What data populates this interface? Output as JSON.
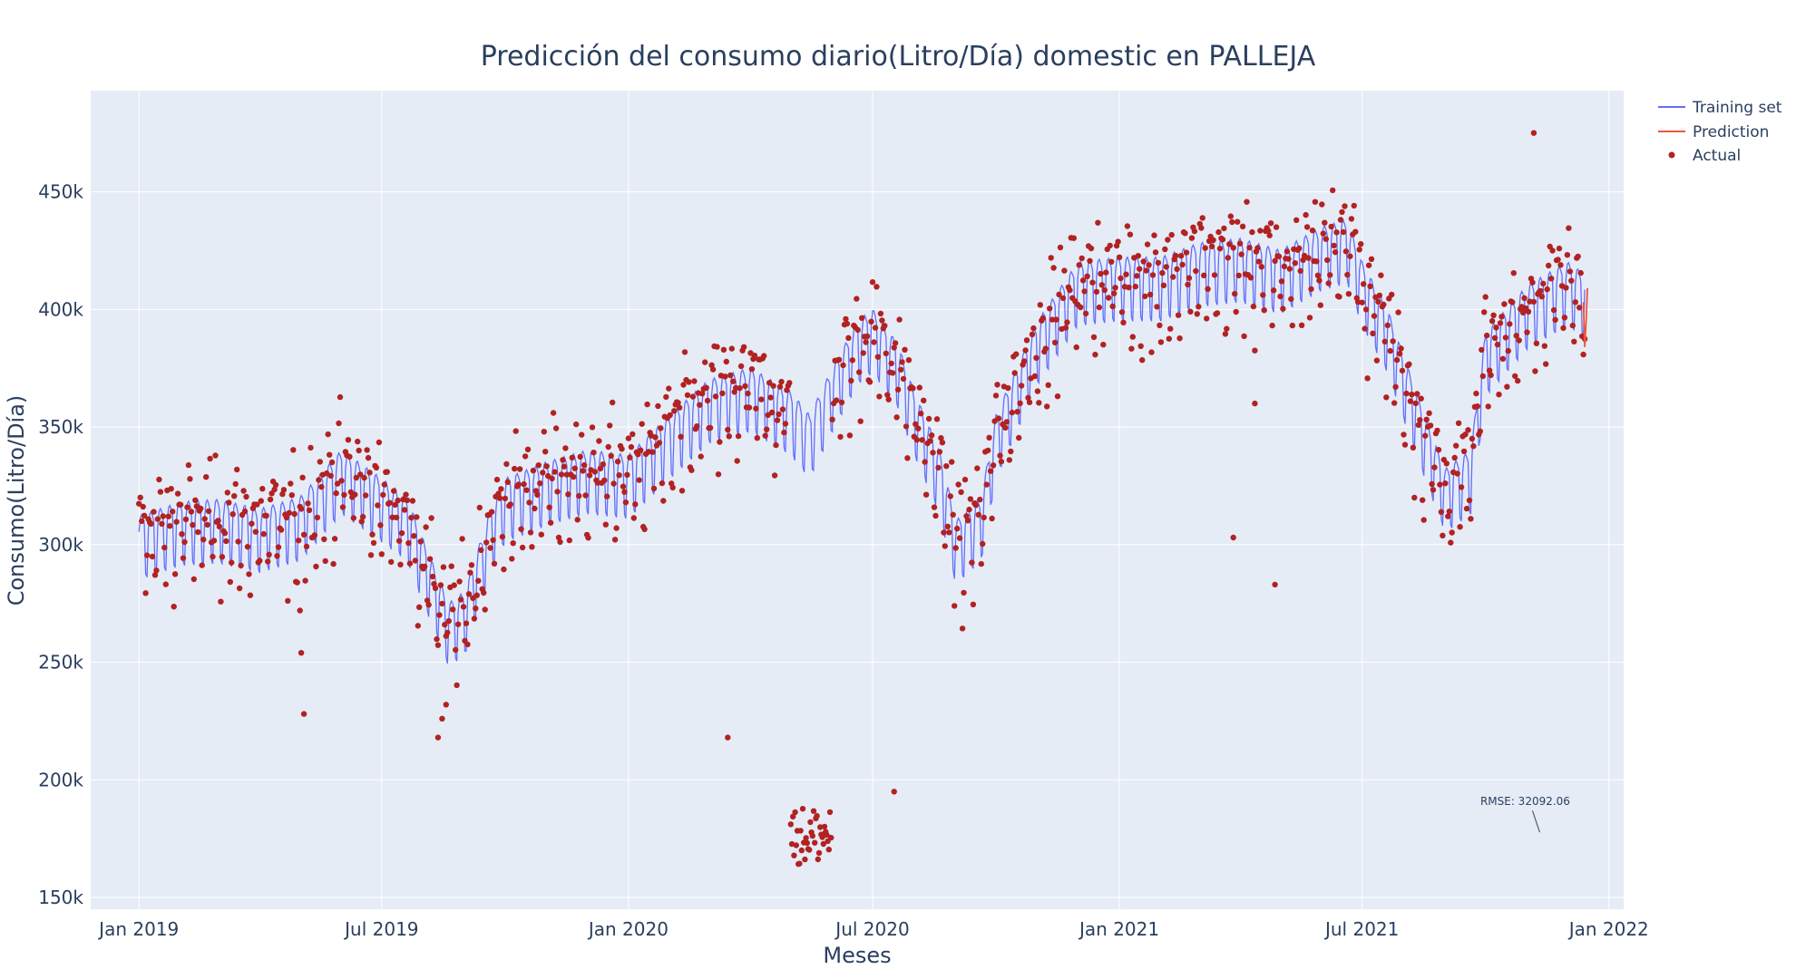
{
  "chart_data": {
    "type": "line",
    "title": "Predicción del consumo diario(Litro/Día) domestic en PALLEJA",
    "xlabel": "Meses",
    "ylabel": "Consumo(Litro/Día)",
    "x_ticks": [
      "Jan 2019",
      "Jul 2019",
      "Jan 2020",
      "Jul 2020",
      "Jan 2021",
      "Jul 2021",
      "Jan 2022"
    ],
    "x_tick_dates": [
      "2019-01-01",
      "2019-07-01",
      "2020-01-01",
      "2020-07-01",
      "2021-01-01",
      "2021-07-01",
      "2022-01-01"
    ],
    "y_ticks": [
      "150k",
      "200k",
      "250k",
      "300k",
      "350k",
      "400k",
      "450k"
    ],
    "y_tick_values": [
      150000,
      200000,
      250000,
      300000,
      350000,
      400000,
      450000
    ],
    "xlim": [
      "2018-11-26",
      "2022-01-12"
    ],
    "ylim": [
      145000,
      493000
    ],
    "grid": true,
    "legend_position": "top-right",
    "annotation": "RMSE: 32092.06",
    "annotation_point": {
      "x": "2021-11-05",
      "y": 180000
    },
    "colors": {
      "training": "#636efa",
      "prediction": "#ef553b",
      "actual": "#b22222",
      "plot_bg": "#e5ecf6",
      "text": "#2a3f5f"
    },
    "series": [
      {
        "name": "Training set",
        "kind": "line",
        "note": "daily fitted series with weekly oscillation",
        "weekly_amplitude": 17000,
        "trend": {
          "x": [
            "2019-01-01",
            "2019-02-01",
            "2019-03-01",
            "2019-04-01",
            "2019-05-01",
            "2019-06-01",
            "2019-07-01",
            "2019-07-20",
            "2019-08-01",
            "2019-08-20",
            "2019-09-01",
            "2019-09-20",
            "2019-10-01",
            "2019-11-01",
            "2019-12-01",
            "2020-01-01",
            "2020-02-01",
            "2020-03-01",
            "2020-04-01",
            "2020-05-01",
            "2020-05-15",
            "2020-06-01",
            "2020-06-20",
            "2020-07-01",
            "2020-07-20",
            "2020-08-01",
            "2020-08-20",
            "2020-09-01",
            "2020-09-20",
            "2020-10-01",
            "2020-11-01",
            "2020-12-01",
            "2021-01-01",
            "2021-02-01",
            "2021-03-01",
            "2021-04-01",
            "2021-05-01",
            "2021-06-01",
            "2021-06-20",
            "2021-07-01",
            "2021-07-20",
            "2021-08-01",
            "2021-08-20",
            "2021-09-01",
            "2021-09-20",
            "2021-10-01",
            "2021-11-01",
            "2021-12-01",
            "2021-12-14"
          ],
          "y": [
            302000,
            308000,
            309000,
            305000,
            310000,
            330000,
            318000,
            310000,
            292000,
            265000,
            270000,
            305000,
            318000,
            325000,
            330000,
            328000,
            345000,
            360000,
            365000,
            355000,
            345000,
            365000,
            385000,
            390000,
            375000,
            355000,
            330000,
            300000,
            310000,
            345000,
            385000,
            410000,
            412000,
            412000,
            418000,
            420000,
            415000,
            425000,
            428000,
            410000,
            390000,
            370000,
            340000,
            322000,
            330000,
            380000,
            400000,
            410000,
            405000
          ]
        }
      },
      {
        "name": "Prediction",
        "kind": "line",
        "x": [
          "2021-12-13",
          "2021-12-14",
          "2021-12-15",
          "2021-12-16"
        ],
        "y": [
          403000,
          384000,
          395000,
          409000
        ]
      },
      {
        "name": "Actual",
        "kind": "markers",
        "note": "daily observations scattered around the training series",
        "outliers": {
          "x": [
            "2019-05-01",
            "2019-05-02",
            "2019-05-04",
            "2019-08-12",
            "2019-08-15",
            "2019-08-18",
            "2020-03-15",
            "2020-07-17",
            "2021-03-27",
            "2021-04-27",
            "2021-04-12",
            "2021-11-06"
          ],
          "y": [
            272000,
            254000,
            228000,
            218000,
            226000,
            232000,
            218000,
            195000,
            303000,
            283000,
            360000,
            475000
          ]
        },
        "cluster": {
          "x_start": "2020-05-01",
          "x_end": "2020-05-31",
          "y_min": 164000,
          "y_max": 189000,
          "count": 38
        }
      }
    ]
  }
}
